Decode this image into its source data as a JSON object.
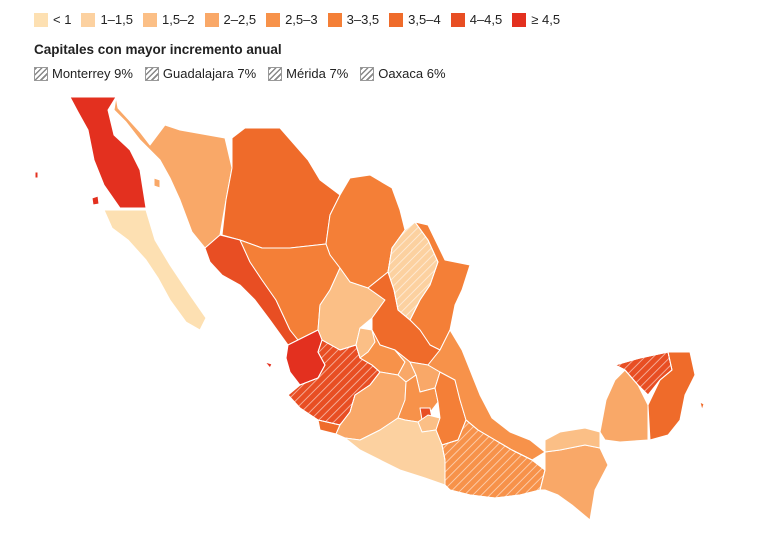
{
  "legend": {
    "bins": [
      {
        "label": "< 1",
        "color": "#fde0b2"
      },
      {
        "label": "1–1,5",
        "color": "#fcd1a0"
      },
      {
        "label": "1,5–2",
        "color": "#fbbf86"
      },
      {
        "label": "2–2,5",
        "color": "#f9a868"
      },
      {
        "label": "2,5–3",
        "color": "#f7924a"
      },
      {
        "label": "3–3,5",
        "color": "#f47f37"
      },
      {
        "label": "3,5–4",
        "color": "#ef6b2a"
      },
      {
        "label": "4–4,5",
        "color": "#e84e23"
      },
      {
        "label": "≥ 4,5",
        "color": "#e3301f"
      }
    ]
  },
  "title": "Capitales con mayor incremento anual",
  "hatch_legend": [
    {
      "label": "Monterrey 9%"
    },
    {
      "label": "Guadalajara 7%"
    },
    {
      "label": "Mérida 7%"
    },
    {
      "label": "Oaxaca 6%"
    }
  ],
  "map": {
    "states": [
      {
        "name": "Baja California",
        "bin": 8
      },
      {
        "name": "Baja California Sur",
        "bin": 0
      },
      {
        "name": "Sonora",
        "bin": 3
      },
      {
        "name": "Chihuahua",
        "bin": 6
      },
      {
        "name": "Coahuila",
        "bin": 5
      },
      {
        "name": "Nuevo León",
        "bin": 1,
        "hatched": true
      },
      {
        "name": "Tamaulipas",
        "bin": 5
      },
      {
        "name": "Sinaloa",
        "bin": 7
      },
      {
        "name": "Durango",
        "bin": 5
      },
      {
        "name": "Zacatecas",
        "bin": 2
      },
      {
        "name": "San Luis Potosí",
        "bin": 6
      },
      {
        "name": "Nayarit",
        "bin": 8
      },
      {
        "name": "Jalisco",
        "bin": 7,
        "hatched": true
      },
      {
        "name": "Aguascalientes",
        "bin": 2
      },
      {
        "name": "Guanajuato",
        "bin": 4
      },
      {
        "name": "Querétaro",
        "bin": 3
      },
      {
        "name": "Hidalgo",
        "bin": 3
      },
      {
        "name": "Colima",
        "bin": 6
      },
      {
        "name": "Michoacán",
        "bin": 3
      },
      {
        "name": "Estado de México",
        "bin": 4
      },
      {
        "name": "Ciudad de México",
        "bin": 7
      },
      {
        "name": "Morelos",
        "bin": 2
      },
      {
        "name": "Tlaxcala",
        "bin": 3
      },
      {
        "name": "Puebla",
        "bin": 5
      },
      {
        "name": "Veracruz",
        "bin": 4
      },
      {
        "name": "Guerrero",
        "bin": 1
      },
      {
        "name": "Oaxaca",
        "bin": 4,
        "hatched": true
      },
      {
        "name": "Chiapas",
        "bin": 3
      },
      {
        "name": "Tabasco",
        "bin": 2
      },
      {
        "name": "Campeche",
        "bin": 3
      },
      {
        "name": "Yucatán",
        "bin": 7,
        "hatched": true
      },
      {
        "name": "Quintana Roo",
        "bin": 6
      }
    ]
  }
}
